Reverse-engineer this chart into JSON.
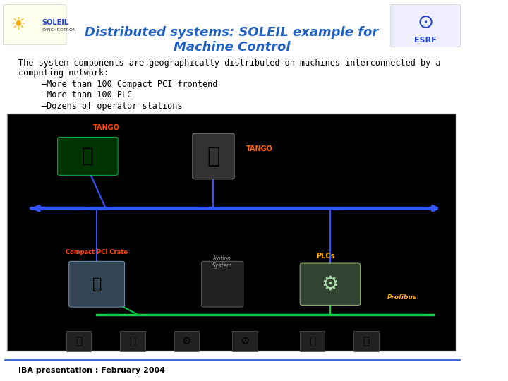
{
  "title_line1": "Distributed systems: SOLEIL example for",
  "title_line2": "Machine Control",
  "title_color": "#2060c0",
  "body_text_line1": "The system components are geographically distributed on machines interconnected by a",
  "body_text_line2": "computing network:",
  "bullet1": "–More than 100 Compact PCI frontend",
  "bullet2": "–More than 100 PLC",
  "bullet3": "–Dozens of operator stations",
  "footer": "IBA presentation : February 2004",
  "footer_color": "#000000",
  "footer_line_color": "#3366cc",
  "bg_color": "#ffffff",
  "diagram_bg": "#000000",
  "blue_line_color": "#3355ff",
  "green_line_color": "#00cc44",
  "red_label_color": "#ff4400",
  "tango_label_color": "#ff6600",
  "plcs_label_color": "#ffaa00",
  "profibus_label_color": "#ffaa00"
}
